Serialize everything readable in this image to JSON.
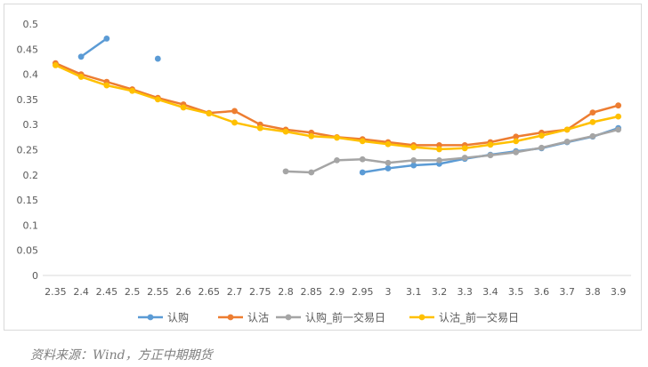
{
  "chart_data": {
    "type": "line",
    "title": "",
    "xlabel": "",
    "ylabel": "",
    "categories": [
      "2.35",
      "2.4",
      "2.45",
      "2.5",
      "2.55",
      "2.6",
      "2.65",
      "2.7",
      "2.75",
      "2.8",
      "2.85",
      "2.9",
      "2.95",
      "3",
      "3.1",
      "3.2",
      "3.3",
      "3.4",
      "3.5",
      "3.6",
      "3.7",
      "3.8",
      "3.9"
    ],
    "ylim": [
      0,
      0.5
    ],
    "yticks": [
      "0",
      "0.05",
      "0.1",
      "0.15",
      "0.2",
      "0.25",
      "0.3",
      "0.35",
      "0.4",
      "0.45",
      "0.5"
    ],
    "grid": false,
    "legend_position": "bottom",
    "series": [
      {
        "name": "认购",
        "color": "#5B9BD5",
        "values": [
          null,
          0.435,
          0.471,
          null,
          0.431,
          null,
          null,
          null,
          null,
          null,
          null,
          null,
          0.205,
          0.213,
          0.219,
          0.222,
          0.232,
          0.24,
          0.247,
          0.253,
          0.265,
          0.276,
          0.293
        ]
      },
      {
        "name": "认沽",
        "color": "#ED7D31",
        "values": [
          0.422,
          0.4,
          0.385,
          0.37,
          0.353,
          0.34,
          0.323,
          0.327,
          0.3,
          0.29,
          0.284,
          0.275,
          0.271,
          0.265,
          0.259,
          0.259,
          0.259,
          0.265,
          0.276,
          0.284,
          0.29,
          0.324,
          0.338
        ]
      },
      {
        "name": "认购_前一交易日",
        "color": "#A5A5A5",
        "values": [
          null,
          null,
          null,
          null,
          null,
          null,
          null,
          null,
          null,
          0.207,
          0.205,
          0.229,
          0.231,
          0.224,
          0.229,
          0.229,
          0.234,
          0.239,
          0.245,
          0.254,
          0.266,
          0.277,
          0.29
        ]
      },
      {
        "name": "认沽_前一交易日",
        "color": "#FFC000",
        "values": [
          0.418,
          0.395,
          0.378,
          0.367,
          0.35,
          0.334,
          0.322,
          0.304,
          0.293,
          0.286,
          0.277,
          0.274,
          0.267,
          0.261,
          0.255,
          0.251,
          0.253,
          0.26,
          0.267,
          0.278,
          0.29,
          0.305,
          0.316
        ]
      }
    ]
  },
  "source_note": "资料来源：Wind，方正中期期货"
}
